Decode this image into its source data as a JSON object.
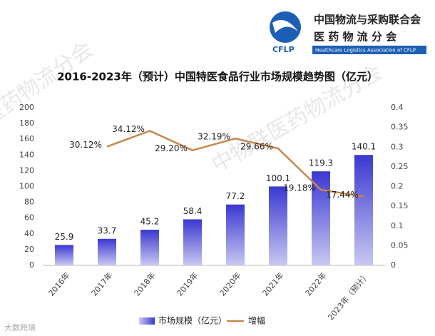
{
  "chart_data": {
    "type": "bar-line",
    "title": "2016-2023年（预计）中国特医食品行业市场规模趋势图（亿元）",
    "logo": {
      "org": "中国物流与采购联合会",
      "branch": "医 药 物 流 分 会",
      "abbr": "CFLP",
      "english": "Healthcare Logistics Association of CFLP"
    },
    "watermarks": [
      "中物联医药物流分会",
      "医药物流分会",
      "大数跨境"
    ],
    "categories": [
      "2016年",
      "2017年",
      "2018年",
      "2019年",
      "2020年",
      "2021年",
      "2022年",
      "2023年（预计）"
    ],
    "series": [
      {
        "name": "市场规模（亿元）",
        "type": "bar",
        "color": "#4a4ad6",
        "values": [
          25.9,
          33.7,
          45.2,
          58.4,
          77.2,
          100.1,
          119.3,
          140.1
        ]
      },
      {
        "name": "增幅",
        "type": "line",
        "axis": "y2",
        "color": "#c8874b",
        "values": [
          null,
          0.3012,
          0.3412,
          0.292,
          0.3219,
          0.2966,
          0.1918,
          0.1744
        ],
        "value_labels": [
          null,
          "30.12%",
          "34.12%",
          "29.20%",
          "32.19%",
          "29.66%",
          "19.18%",
          "17.44%"
        ]
      }
    ],
    "ylim": [
      0,
      200
    ],
    "yticks": [
      0,
      20,
      40,
      60,
      80,
      100,
      120,
      140,
      160,
      180,
      200
    ],
    "y2lim": [
      0,
      0.4
    ],
    "y2ticks": [
      0,
      0.05,
      0.1,
      0.15,
      0.2,
      0.25,
      0.3,
      0.35,
      0.4
    ],
    "legend": "bottom",
    "grid": false
  }
}
